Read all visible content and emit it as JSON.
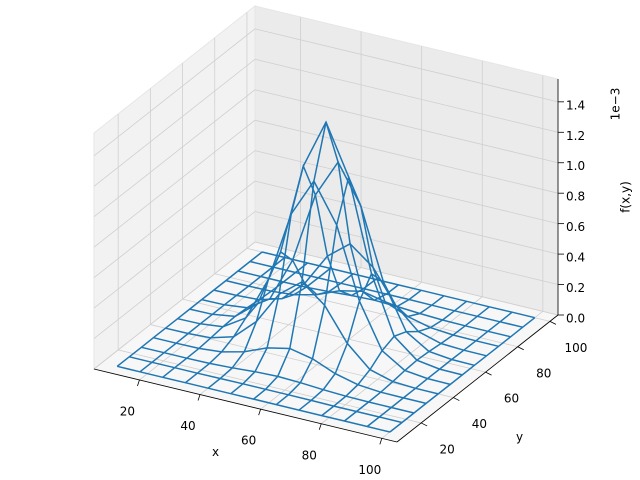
{
  "chart_data": {
    "type": "wireframe",
    "color": "#1f77b4",
    "xlabel": "x",
    "ylabel": "y",
    "zlabel": "f(x,y)",
    "z_offset_label": "1e−3",
    "x": [
      10,
      17.5,
      25,
      32.5,
      40,
      47.5,
      55,
      62.5,
      70,
      77.5,
      85,
      92.5,
      100
    ],
    "y": [
      10,
      17.5,
      25,
      32.5,
      40,
      47.5,
      55,
      62.5,
      70,
      77.5,
      85,
      92.5,
      100
    ],
    "z": [
      [
        0,
        0,
        0,
        0,
        0,
        0,
        0,
        0,
        0,
        0,
        0,
        0,
        0
      ],
      [
        0,
        0,
        0,
        0,
        0.001,
        0.002,
        0.002,
        0.002,
        0.001,
        0,
        0,
        0,
        0
      ],
      [
        0,
        0,
        0,
        0.002,
        0.009,
        0.019,
        0.024,
        0.019,
        0.009,
        0.002,
        0,
        0,
        0
      ],
      [
        0,
        0,
        0.002,
        0.015,
        0.052,
        0.113,
        0.145,
        0.113,
        0.052,
        0.015,
        0.002,
        0,
        0
      ],
      [
        0,
        0.001,
        0.009,
        0.052,
        0.188,
        0.403,
        0.52,
        0.403,
        0.188,
        0.052,
        0.009,
        0.001,
        0
      ],
      [
        0,
        0.002,
        0.019,
        0.113,
        0.403,
        0.867,
        1.119,
        0.867,
        0.403,
        0.113,
        0.019,
        0.002,
        0
      ],
      [
        0,
        0.002,
        0.024,
        0.145,
        0.52,
        1.119,
        1.444,
        1.119,
        0.52,
        0.145,
        0.024,
        0.002,
        0
      ],
      [
        0,
        0.002,
        0.019,
        0.113,
        0.403,
        0.867,
        1.119,
        0.867,
        0.403,
        0.113,
        0.019,
        0.002,
        0
      ],
      [
        0,
        0.001,
        0.009,
        0.052,
        0.188,
        0.403,
        0.52,
        0.403,
        0.188,
        0.052,
        0.009,
        0.001,
        0
      ],
      [
        0,
        0,
        0.002,
        0.015,
        0.052,
        0.113,
        0.145,
        0.113,
        0.052,
        0.015,
        0.002,
        0,
        0
      ],
      [
        0,
        0,
        0,
        0.002,
        0.009,
        0.019,
        0.024,
        0.019,
        0.009,
        0.002,
        0,
        0,
        0
      ],
      [
        0,
        0,
        0,
        0,
        0.001,
        0.002,
        0.002,
        0.002,
        0.001,
        0,
        0,
        0,
        0
      ],
      [
        0,
        0,
        0,
        0,
        0,
        0,
        0,
        0,
        0,
        0,
        0,
        0,
        0
      ]
    ],
    "xlim": [
      5,
      105
    ],
    "ylim": [
      5,
      105
    ],
    "zlim": [
      0,
      1.55
    ],
    "xticks": [
      20,
      40,
      60,
      80,
      100
    ],
    "yticks": [
      20,
      40,
      60,
      80,
      100
    ],
    "zticks": [
      {
        "value": 0,
        "label": "0.0"
      },
      {
        "value": 0.2,
        "label": "0.2"
      },
      {
        "value": 0.4,
        "label": "0.4"
      },
      {
        "value": 0.6,
        "label": "0.6"
      },
      {
        "value": 0.8,
        "label": "0.8"
      },
      {
        "value": 1.0,
        "label": "1.0"
      },
      {
        "value": 1.2,
        "label": "1.2"
      },
      {
        "value": 1.4,
        "label": "1.4"
      }
    ],
    "grid": true
  }
}
